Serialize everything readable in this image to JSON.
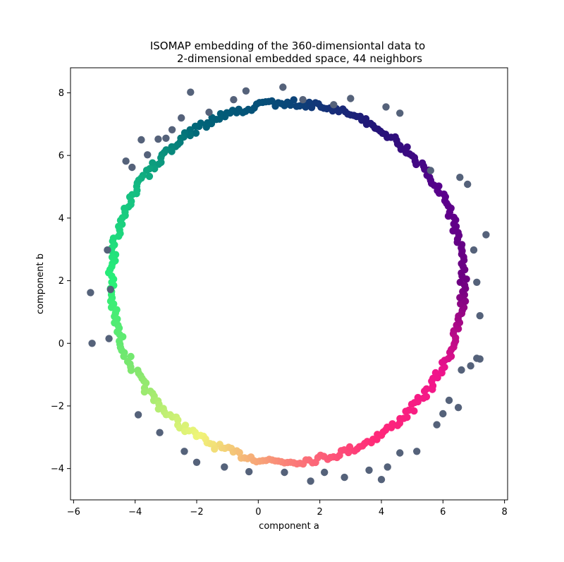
{
  "chart_data": {
    "type": "scatter",
    "title_lines": [
      "ISOMAP embedding of the 360-dimensiontal data to",
      "2-dimensional embedded space, 44 neighbors"
    ],
    "xlabel": "component a",
    "ylabel": "component b",
    "xlim": [
      -6.1,
      8.1
    ],
    "ylim": [
      -5.0,
      8.8
    ],
    "xticks": [
      -6,
      -4,
      -2,
      0,
      2,
      4,
      6,
      8
    ],
    "yticks": [
      -4,
      -2,
      0,
      2,
      4,
      6,
      8
    ],
    "xtick_labels": [
      "−6",
      "−4",
      "−2",
      "0",
      "2",
      "4",
      "6",
      "8"
    ],
    "ytick_labels": [
      "−4",
      "−2",
      "0",
      "2",
      "4",
      "6",
      "8"
    ],
    "grid": false,
    "ring": {
      "center": [
        0.95,
        1.95
      ],
      "radius_x": 5.72,
      "radius_y": 5.72,
      "approx_point_count": 360,
      "colormap": "angle-based hue: navy (top-right) → purple (right) → magenta/pink (bottom-right) → salmon/peach (bottom) → pale yellow (bottom-left) → green (left) → teal (top-left) → dark teal/blue (top)"
    },
    "outliers": [
      [
        -5.45,
        1.62
      ],
      [
        -5.4,
        0.0
      ],
      [
        -4.9,
        2.98
      ],
      [
        -4.85,
        0.15
      ],
      [
        -4.8,
        1.72
      ],
      [
        -4.3,
        5.82
      ],
      [
        -4.1,
        5.62
      ],
      [
        -3.8,
        6.5
      ],
      [
        -3.6,
        6.02
      ],
      [
        -3.25,
        6.52
      ],
      [
        -3.0,
        6.55
      ],
      [
        -2.8,
        6.82
      ],
      [
        -2.5,
        7.2
      ],
      [
        -2.2,
        8.02
      ],
      [
        -1.6,
        7.38
      ],
      [
        -0.8,
        7.78
      ],
      [
        -0.4,
        8.06
      ],
      [
        0.8,
        8.18
      ],
      [
        1.45,
        7.78
      ],
      [
        2.45,
        7.62
      ],
      [
        3.0,
        7.82
      ],
      [
        4.15,
        7.55
      ],
      [
        4.6,
        7.35
      ],
      [
        5.6,
        5.52
      ],
      [
        6.55,
        5.3
      ],
      [
        6.8,
        5.08
      ],
      [
        7.0,
        2.98
      ],
      [
        7.1,
        1.95
      ],
      [
        7.2,
        0.88
      ],
      [
        7.1,
        -0.48
      ],
      [
        7.4,
        3.47
      ],
      [
        7.2,
        -0.5
      ],
      [
        6.9,
        -0.72
      ],
      [
        6.6,
        -0.85
      ],
      [
        6.2,
        -1.82
      ],
      [
        6.0,
        -2.25
      ],
      [
        6.5,
        -2.05
      ],
      [
        5.8,
        -2.6
      ],
      [
        5.15,
        -3.45
      ],
      [
        4.6,
        -3.5
      ],
      [
        4.2,
        -3.95
      ],
      [
        4.0,
        -4.35
      ],
      [
        3.6,
        -4.05
      ],
      [
        2.8,
        -4.28
      ],
      [
        2.15,
        -4.12
      ],
      [
        1.7,
        -4.4
      ],
      [
        0.85,
        -4.12
      ],
      [
        -0.3,
        -4.1
      ],
      [
        -1.1,
        -3.95
      ],
      [
        -2.0,
        -3.8
      ],
      [
        -2.4,
        -3.45
      ],
      [
        -3.2,
        -2.85
      ],
      [
        -3.9,
        -2.28
      ]
    ],
    "outlier_color": "#55627a"
  }
}
